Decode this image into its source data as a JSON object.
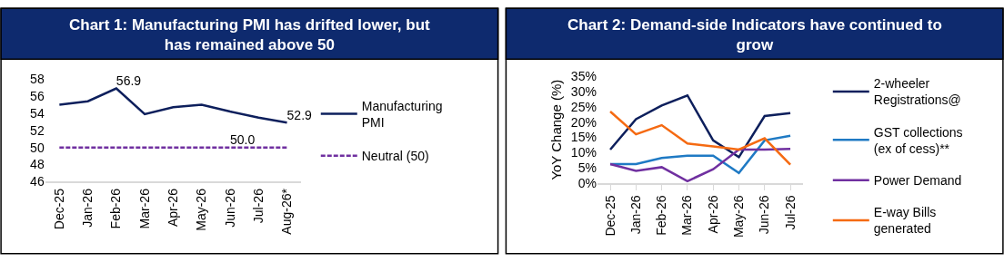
{
  "chart_data": [
    {
      "type": "line",
      "title": "Chart 1: Manufacturing PMI has drifted lower, but has remained above 50",
      "categories": [
        "Dec-25",
        "Jan-26",
        "Feb-26",
        "Mar-26",
        "Apr-26",
        "May-26",
        "Jun-26",
        "Jul-26",
        "Aug-26*"
      ],
      "series": [
        {
          "name": "Manufacturing PMI",
          "color": "#0d1f5c",
          "values": [
            55.0,
            55.4,
            56.9,
            53.9,
            54.7,
            55.0,
            54.2,
            53.5,
            52.9
          ],
          "value_labels": [
            null,
            null,
            "56.9",
            null,
            null,
            null,
            null,
            null,
            "52.9"
          ],
          "line_style": "solid"
        },
        {
          "name": "Neutral (50)",
          "color": "#7030a0",
          "values": [
            50,
            50,
            50,
            50,
            50,
            50,
            50,
            50,
            50
          ],
          "value_labels": [
            null,
            null,
            null,
            null,
            null,
            null,
            "50.0",
            null,
            null
          ],
          "line_style": "dashed"
        }
      ],
      "ylim": [
        46,
        58
      ],
      "yticks": [
        46,
        48,
        50,
        52,
        54,
        56,
        58
      ],
      "legend": "right",
      "marker": "none"
    },
    {
      "type": "line",
      "title": "Chart 2: Demand-side Indicators have continued to grow",
      "ylabel": "YoY Change (%)",
      "categories": [
        "Dec-25",
        "Jan-26",
        "Feb-26",
        "Mar-26",
        "Apr-26",
        "May-26",
        "Jun-26",
        "Jul-26"
      ],
      "series": [
        {
          "name": "2-wheeler Registrations@",
          "color": "#0d1f5c",
          "values": [
            11,
            21,
            25.5,
            28.8,
            14,
            8.5,
            22,
            23
          ]
        },
        {
          "name": "GST collections (ex of cess)**",
          "color": "#1f7ac4",
          "values": [
            6.2,
            6.2,
            8.2,
            9,
            9,
            3.3,
            14,
            15.5
          ]
        },
        {
          "name": "Power Demand",
          "color": "#7030a0",
          "values": [
            6.2,
            4,
            5.2,
            0.6,
            4.5,
            11,
            11,
            11.2
          ]
        },
        {
          "name": "E-way Bills generated",
          "color": "#f56a12",
          "values": [
            23.5,
            16,
            19,
            13,
            12,
            11,
            14.7,
            6
          ]
        }
      ],
      "ylim": [
        0,
        35
      ],
      "yticks": [
        {
          "value": 0,
          "label": "0%"
        },
        {
          "value": 5,
          "label": "5%"
        },
        {
          "value": 10,
          "label": "10%"
        },
        {
          "value": 15,
          "label": "15%"
        },
        {
          "value": 20,
          "label": "20%"
        },
        {
          "value": 25,
          "label": "25%"
        },
        {
          "value": 30,
          "label": "30%"
        },
        {
          "value": 35,
          "label": "35%"
        }
      ],
      "legend": "right",
      "marker": "none"
    }
  ]
}
